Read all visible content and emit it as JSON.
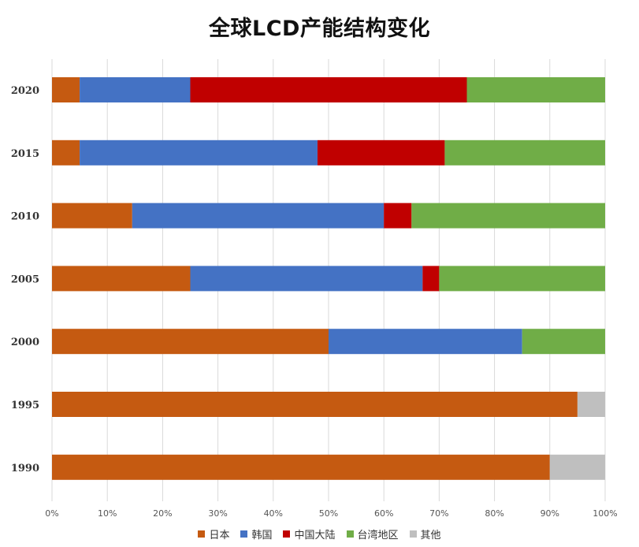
{
  "chart_data": {
    "type": "bar",
    "orientation": "horizontal",
    "stacked": true,
    "title": "全球LCD产能结构变化",
    "categories": [
      "2020",
      "2015",
      "2010",
      "2005",
      "2000",
      "1995",
      "1990"
    ],
    "series": [
      {
        "name": "日本",
        "color": "#C55A11",
        "values": [
          5,
          5,
          14.5,
          25,
          50,
          95,
          90
        ]
      },
      {
        "name": "韩国",
        "color": "#4472C4",
        "values": [
          20,
          43,
          45.5,
          42,
          35,
          0,
          0
        ]
      },
      {
        "name": "中国大陆",
        "color": "#C00000",
        "values": [
          50,
          23,
          5,
          3,
          0,
          0,
          0
        ]
      },
      {
        "name": "台湾地区",
        "color": "#70AD47",
        "values": [
          25,
          29,
          35,
          30,
          15,
          0,
          0
        ]
      },
      {
        "name": "其他",
        "color": "#BFBFBF",
        "values": [
          0,
          0,
          0,
          0,
          0,
          5,
          10
        ]
      }
    ],
    "xticks": [
      "0%",
      "10%",
      "20%",
      "30%",
      "40%",
      "50%",
      "60%",
      "70%",
      "80%",
      "90%",
      "100%"
    ],
    "xlim": [
      0,
      100
    ],
    "grid": true,
    "legend_position": "bottom"
  }
}
